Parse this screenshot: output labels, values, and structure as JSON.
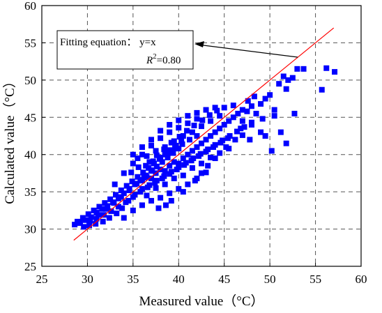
{
  "chart_data": {
    "type": "scatter",
    "title": "",
    "xlabel": "Measured value（°C）",
    "ylabel": "Calculated value（°C）",
    "xlim": [
      25,
      60
    ],
    "ylim": [
      25,
      60
    ],
    "x_ticks": [
      "25",
      "30",
      "35",
      "40",
      "45",
      "50",
      "55",
      "60"
    ],
    "y_ticks": [
      "25",
      "30",
      "35",
      "40",
      "45",
      "50",
      "55",
      "60"
    ],
    "grid": true,
    "grid_style": "dashed",
    "marker": "square",
    "point_color": "#0000ff",
    "fit_line_color": "#ff0000",
    "fit_line": {
      "x": [
        28.5,
        57.0
      ],
      "y": [
        28.5,
        57.0
      ]
    },
    "annotation": {
      "line1": "Fitting equation： y=x",
      "r_symbol": "R",
      "r_exponent": "2",
      "r_value": "=0.80"
    },
    "points": [
      [
        28.6,
        30.6
      ],
      [
        28.9,
        31.0
      ],
      [
        29.2,
        30.8
      ],
      [
        29.5,
        31.5
      ],
      [
        29.8,
        31.2
      ],
      [
        30.1,
        32.0
      ],
      [
        30.4,
        31.6
      ],
      [
        30.7,
        32.5
      ],
      [
        31.0,
        32.2
      ],
      [
        31.3,
        33.0
      ],
      [
        31.6,
        32.7
      ],
      [
        31.9,
        33.5
      ],
      [
        32.2,
        33.1
      ],
      [
        32.5,
        34.0
      ],
      [
        32.8,
        33.6
      ],
      [
        33.1,
        34.6
      ],
      [
        33.4,
        34.1
      ],
      [
        33.7,
        35.2
      ],
      [
        34.0,
        34.8
      ],
      [
        34.3,
        35.8
      ],
      [
        34.6,
        35.4
      ],
      [
        34.9,
        36.4
      ],
      [
        35.2,
        36.0
      ],
      [
        35.5,
        37.0
      ],
      [
        35.8,
        36.6
      ],
      [
        36.1,
        37.6
      ],
      [
        36.4,
        37.2
      ],
      [
        36.7,
        38.2
      ],
      [
        37.0,
        37.8
      ],
      [
        37.3,
        38.8
      ],
      [
        37.6,
        38.4
      ],
      [
        37.9,
        39.4
      ],
      [
        38.2,
        39.0
      ],
      [
        38.5,
        40.0
      ],
      [
        38.8,
        39.6
      ],
      [
        39.1,
        40.6
      ],
      [
        39.4,
        40.2
      ],
      [
        39.7,
        41.2
      ],
      [
        40.0,
        40.8
      ],
      [
        40.3,
        41.8
      ],
      [
        30.2,
        30.5
      ],
      [
        31.0,
        31.4
      ],
      [
        31.8,
        31.9
      ],
      [
        32.6,
        32.4
      ],
      [
        33.4,
        33.0
      ],
      [
        34.2,
        33.6
      ],
      [
        35.0,
        34.3
      ],
      [
        35.8,
        35.0
      ],
      [
        36.6,
        35.6
      ],
      [
        37.4,
        36.2
      ],
      [
        38.2,
        36.8
      ],
      [
        39.0,
        37.4
      ],
      [
        39.8,
        38.0
      ],
      [
        40.6,
        38.6
      ],
      [
        41.4,
        39.2
      ],
      [
        42.2,
        39.8
      ],
      [
        43.0,
        40.4
      ],
      [
        43.8,
        41.0
      ],
      [
        44.6,
        41.6
      ],
      [
        45.4,
        42.2
      ],
      [
        33.0,
        36.0
      ],
      [
        34.0,
        37.5
      ],
      [
        35.0,
        38.8
      ],
      [
        36.0,
        40.0
      ],
      [
        37.0,
        41.2
      ],
      [
        38.0,
        42.2
      ],
      [
        39.0,
        43.0
      ],
      [
        40.0,
        43.6
      ],
      [
        41.0,
        44.2
      ],
      [
        42.0,
        44.8
      ],
      [
        34.0,
        31.5
      ],
      [
        35.0,
        32.5
      ],
      [
        36.0,
        33.2
      ],
      [
        37.0,
        33.8
      ],
      [
        38.0,
        34.2
      ],
      [
        39.0,
        34.8
      ],
      [
        40.0,
        35.4
      ],
      [
        41.0,
        36.0
      ],
      [
        42.0,
        36.8
      ],
      [
        43.0,
        37.6
      ],
      [
        35.5,
        39.5
      ],
      [
        36.5,
        39.8
      ],
      [
        37.5,
        40.5
      ],
      [
        38.5,
        41.0
      ],
      [
        39.5,
        41.8
      ],
      [
        40.5,
        42.5
      ],
      [
        41.5,
        43.0
      ],
      [
        42.5,
        43.8
      ],
      [
        43.5,
        44.5
      ],
      [
        44.5,
        45.2
      ],
      [
        36.0,
        36.5
      ],
      [
        36.5,
        37.0
      ],
      [
        37.0,
        36.8
      ],
      [
        37.5,
        37.5
      ],
      [
        38.0,
        38.0
      ],
      [
        38.5,
        37.8
      ],
      [
        39.0,
        38.5
      ],
      [
        39.5,
        39.0
      ],
      [
        40.0,
        38.8
      ],
      [
        40.5,
        39.5
      ],
      [
        41.0,
        40.0
      ],
      [
        41.5,
        40.5
      ],
      [
        42.0,
        41.0
      ],
      [
        42.5,
        41.5
      ],
      [
        43.0,
        42.0
      ],
      [
        43.5,
        42.5
      ],
      [
        44.0,
        43.0
      ],
      [
        44.5,
        43.5
      ],
      [
        45.0,
        44.0
      ],
      [
        45.5,
        44.5
      ],
      [
        46.0,
        45.0
      ],
      [
        46.5,
        45.5
      ],
      [
        47.0,
        44.5
      ],
      [
        47.5,
        45.8
      ],
      [
        48.0,
        46.5
      ],
      [
        48.5,
        45.5
      ],
      [
        49.0,
        46.8
      ],
      [
        49.5,
        47.5
      ],
      [
        50.0,
        48.0
      ],
      [
        45.0,
        46.3
      ],
      [
        46.0,
        46.6
      ],
      [
        47.0,
        46.0
      ],
      [
        48.0,
        44.0
      ],
      [
        49.0,
        43.0
      ],
      [
        49.5,
        42.5
      ],
      [
        50.5,
        46.0
      ],
      [
        51.0,
        49.5
      ],
      [
        51.5,
        50.5
      ],
      [
        52.0,
        50.0
      ],
      [
        52.5,
        50.3
      ],
      [
        53.0,
        51.5
      ],
      [
        51.8,
        48.8
      ],
      [
        52.7,
        45.5
      ],
      [
        50.2,
        40.5
      ],
      [
        51.2,
        43.0
      ],
      [
        51.8,
        41.5
      ],
      [
        56.2,
        51.6
      ],
      [
        57.1,
        51.1
      ],
      [
        55.7,
        48.7
      ],
      [
        53.7,
        51.5
      ],
      [
        50.5,
        45.2
      ],
      [
        49.2,
        44.8
      ],
      [
        48.3,
        47.8
      ],
      [
        47.6,
        47.2
      ],
      [
        46.8,
        43.5
      ],
      [
        45.2,
        41.0
      ],
      [
        44.0,
        39.5
      ],
      [
        43.2,
        38.5
      ],
      [
        42.5,
        37.5
      ],
      [
        41.8,
        36.5
      ],
      [
        40.5,
        35.0
      ],
      [
        39.2,
        33.8
      ],
      [
        38.6,
        33.2
      ],
      [
        37.8,
        32.8
      ],
      [
        34.5,
        33.8
      ],
      [
        33.8,
        32.8
      ],
      [
        33.2,
        32.1
      ],
      [
        32.4,
        31.5
      ],
      [
        31.7,
        31.0
      ],
      [
        30.9,
        30.7
      ],
      [
        29.6,
        30.3
      ],
      [
        30.3,
        31.1
      ],
      [
        31.2,
        31.9
      ],
      [
        32.0,
        32.7
      ],
      [
        32.9,
        33.5
      ],
      [
        33.7,
        34.3
      ],
      [
        34.6,
        35.2
      ],
      [
        35.4,
        36.1
      ],
      [
        36.2,
        36.9
      ],
      [
        37.1,
        37.9
      ],
      [
        36.8,
        39.0
      ],
      [
        37.6,
        39.9
      ],
      [
        38.4,
        40.7
      ],
      [
        39.2,
        41.6
      ],
      [
        40.1,
        42.4
      ],
      [
        40.9,
        43.2
      ],
      [
        41.7,
        43.9
      ],
      [
        42.6,
        44.6
      ],
      [
        43.4,
        45.3
      ],
      [
        44.2,
        45.9
      ],
      [
        34.8,
        37.6
      ],
      [
        35.6,
        38.3
      ],
      [
        36.4,
        38.5
      ],
      [
        37.2,
        39.1
      ],
      [
        38.0,
        39.6
      ],
      [
        38.8,
        40.3
      ],
      [
        39.6,
        40.9
      ],
      [
        40.4,
        41.4
      ],
      [
        41.2,
        42.0
      ],
      [
        42.0,
        42.5
      ],
      [
        35.2,
        34.6
      ],
      [
        36.0,
        35.4
      ],
      [
        36.8,
        35.9
      ],
      [
        37.6,
        36.5
      ],
      [
        38.4,
        37.1
      ],
      [
        39.2,
        37.7
      ],
      [
        40.0,
        38.3
      ],
      [
        40.8,
        38.9
      ],
      [
        41.6,
        39.5
      ],
      [
        42.4,
        40.1
      ],
      [
        43.2,
        40.7
      ],
      [
        44.0,
        41.3
      ],
      [
        44.8,
        41.9
      ],
      [
        45.6,
        42.5
      ],
      [
        46.4,
        43.1
      ],
      [
        47.2,
        43.7
      ],
      [
        48.0,
        44.3
      ],
      [
        46.2,
        42.0
      ],
      [
        47.0,
        42.6
      ],
      [
        47.8,
        42.0
      ],
      [
        36.5,
        34.5
      ],
      [
        37.5,
        35.5
      ],
      [
        38.5,
        36.0
      ],
      [
        39.5,
        36.8
      ],
      [
        40.5,
        37.2
      ],
      [
        41.5,
        38.2
      ],
      [
        42.5,
        38.8
      ],
      [
        43.5,
        39.6
      ],
      [
        44.5,
        40.2
      ],
      [
        45.5,
        40.8
      ],
      [
        35.0,
        40.0
      ],
      [
        36.0,
        41.0
      ],
      [
        37.0,
        42.0
      ],
      [
        38.0,
        43.2
      ],
      [
        39.0,
        44.0
      ],
      [
        40.0,
        44.6
      ],
      [
        41.0,
        45.2
      ],
      [
        42.0,
        45.6
      ],
      [
        43.0,
        46.0
      ],
      [
        44.0,
        46.3
      ]
    ]
  }
}
